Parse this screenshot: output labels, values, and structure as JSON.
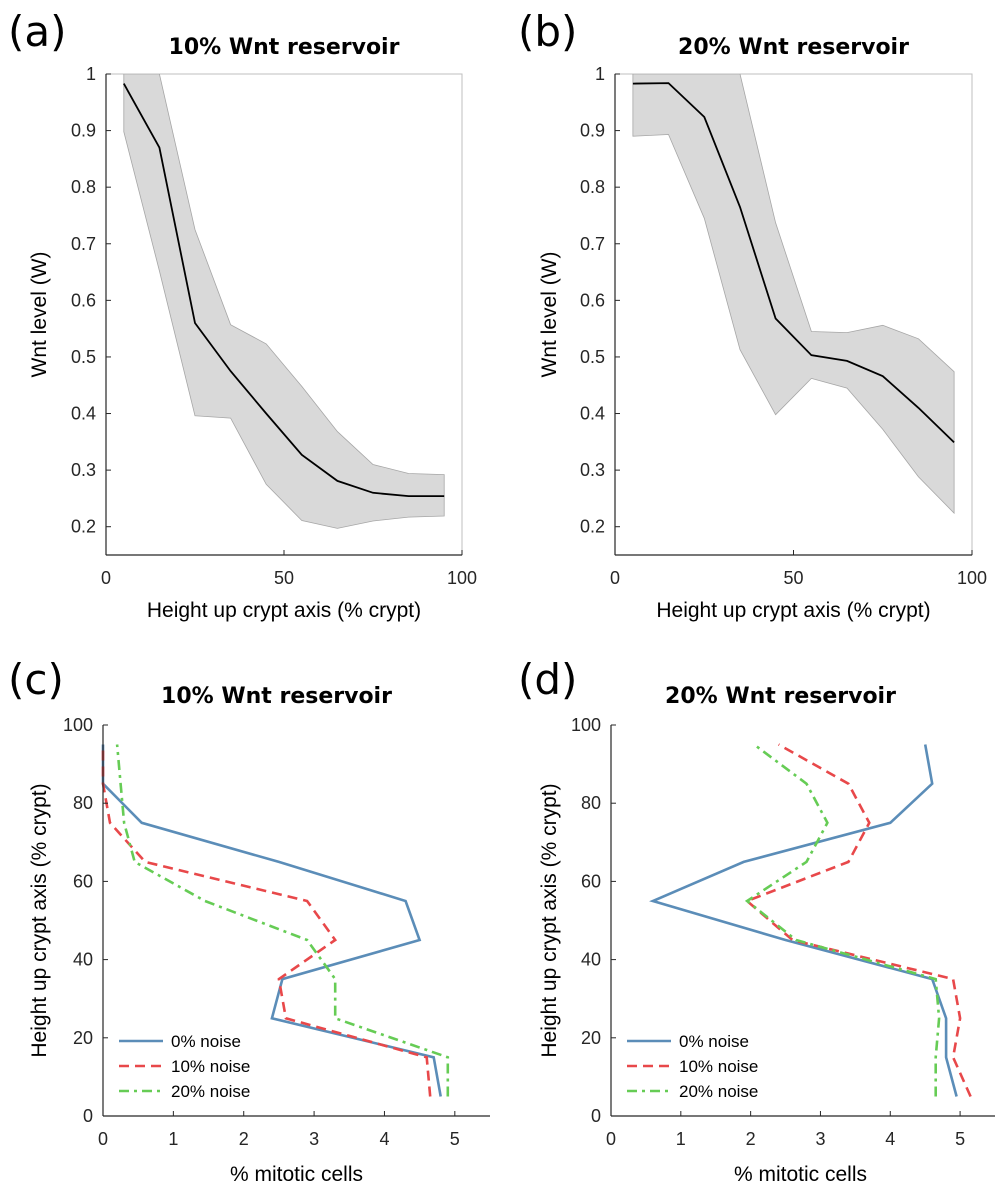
{
  "chart_data": [
    {
      "panel_label": "(a)",
      "type": "area",
      "title": "10% Wnt reservoir",
      "xlabel": "Height up crypt axis (% crypt)",
      "ylabel": "Wnt level (W)",
      "xlim": [
        0,
        100
      ],
      "ylim": [
        0.15,
        1
      ],
      "xticks": [
        "0",
        "50",
        "100"
      ],
      "yticks": [
        "0.2",
        "0.3",
        "0.4",
        "0.5",
        "0.6",
        "0.7",
        "0.8",
        "0.9",
        "1"
      ],
      "grid": false,
      "x": [
        5,
        15,
        25,
        35,
        45,
        55,
        65,
        75,
        85,
        95
      ],
      "mean": [
        0.983,
        0.87,
        0.56,
        0.475,
        0.4,
        0.327,
        0.281,
        0.26,
        0.254,
        0.254
      ],
      "upper": [
        1.0,
        1.0,
        0.725,
        0.557,
        0.523,
        0.448,
        0.368,
        0.31,
        0.294,
        0.292
      ],
      "lower": [
        0.898,
        0.652,
        0.396,
        0.392,
        0.275,
        0.211,
        0.197,
        0.21,
        0.217,
        0.219
      ],
      "colors": {
        "line": "#000000",
        "band": "#d9d9d9"
      }
    },
    {
      "panel_label": "(b)",
      "type": "area",
      "title": "20% Wnt reservoir",
      "xlabel": "Height up crypt axis (% crypt)",
      "ylabel": "Wnt level (W)",
      "xlim": [
        0,
        100
      ],
      "ylim": [
        0.15,
        1
      ],
      "xticks": [
        "0",
        "50",
        "100"
      ],
      "yticks": [
        "0.2",
        "0.3",
        "0.4",
        "0.5",
        "0.6",
        "0.7",
        "0.8",
        "0.9",
        "1"
      ],
      "grid": false,
      "x": [
        5,
        15,
        25,
        35,
        45,
        55,
        65,
        75,
        85,
        95
      ],
      "mean": [
        0.983,
        0.984,
        0.924,
        0.765,
        0.568,
        0.503,
        0.493,
        0.466,
        0.41,
        0.349
      ],
      "upper": [
        1.0,
        1.0,
        1.0,
        1.0,
        0.737,
        0.545,
        0.543,
        0.556,
        0.532,
        0.474
      ],
      "lower": [
        0.89,
        0.893,
        0.745,
        0.513,
        0.398,
        0.462,
        0.445,
        0.372,
        0.288,
        0.224
      ],
      "colors": {
        "line": "#000000",
        "band": "#d9d9d9"
      }
    },
    {
      "panel_label": "(c)",
      "type": "line",
      "title": "10% Wnt reservoir",
      "xlabel": "% mitotic cells",
      "ylabel": "Height up crypt axis (% crypt)",
      "xlim": [
        0,
        5.5
      ],
      "ylim": [
        0,
        100
      ],
      "xticks": [
        "0",
        "1",
        "2",
        "3",
        "4",
        "5"
      ],
      "yticks": [
        "0",
        "20",
        "40",
        "60",
        "80",
        "100"
      ],
      "grid": false,
      "legend_position": "bottom-left",
      "y": [
        5,
        15,
        25,
        35,
        45,
        55,
        65,
        75,
        85,
        95
      ],
      "series": [
        {
          "name": "0% noise",
          "color": "#5b8db8",
          "dash": "solid",
          "values": [
            4.8,
            4.7,
            2.4,
            2.55,
            4.5,
            4.3,
            2.5,
            0.55,
            0.0,
            0.0
          ]
        },
        {
          "name": "10% noise",
          "color": "#e8484a",
          "dash": "dashed",
          "values": [
            4.65,
            4.6,
            2.6,
            2.5,
            3.3,
            2.9,
            0.6,
            0.1,
            0.0,
            0.0
          ]
        },
        {
          "name": "20% noise",
          "color": "#66cc55",
          "dash": "dashdot",
          "values": [
            4.9,
            4.9,
            3.3,
            3.3,
            2.9,
            1.45,
            0.45,
            0.3,
            0.25,
            0.2
          ]
        }
      ]
    },
    {
      "panel_label": "(d)",
      "type": "line",
      "title": "20% Wnt reservoir",
      "xlabel": "% mitotic cells",
      "ylabel": "Height up crypt axis (% crypt)",
      "xlim": [
        0,
        5.5
      ],
      "ylim": [
        0,
        100
      ],
      "xticks": [
        "0",
        "1",
        "2",
        "3",
        "4",
        "5"
      ],
      "yticks": [
        "0",
        "20",
        "40",
        "60",
        "80",
        "100"
      ],
      "grid": false,
      "legend_position": "bottom-left",
      "y": [
        5,
        15,
        25,
        35,
        45,
        55,
        65,
        75,
        85,
        95
      ],
      "series": [
        {
          "name": "0% noise",
          "color": "#5b8db8",
          "dash": "solid",
          "values": [
            4.95,
            4.8,
            4.8,
            4.6,
            2.5,
            0.6,
            1.9,
            4.0,
            4.6,
            4.5
          ]
        },
        {
          "name": "10% noise",
          "color": "#e8484a",
          "dash": "dashed",
          "values": [
            5.15,
            4.9,
            5.0,
            4.9,
            2.6,
            1.95,
            3.4,
            3.7,
            3.4,
            2.4
          ]
        },
        {
          "name": "20% noise",
          "color": "#66cc55",
          "dash": "dashdot",
          "values": [
            4.65,
            4.65,
            4.7,
            4.65,
            2.65,
            1.95,
            2.8,
            3.1,
            2.8,
            2.05
          ]
        }
      ]
    }
  ]
}
